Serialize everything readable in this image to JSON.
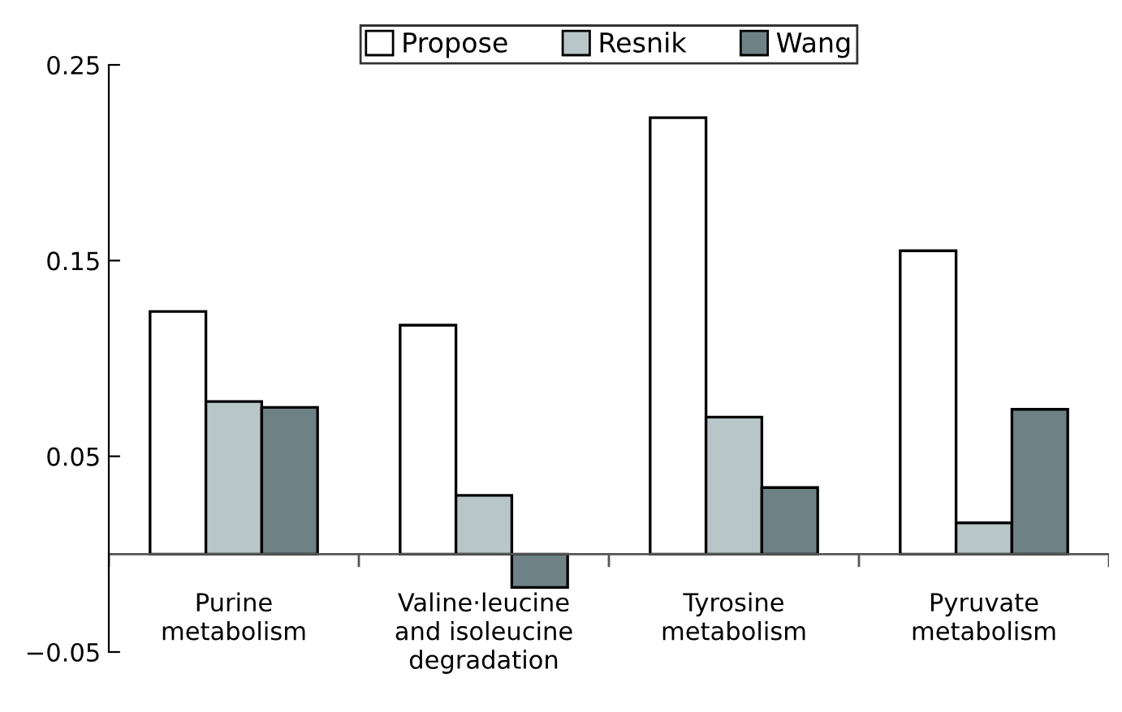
{
  "chart_data": {
    "type": "bar",
    "categories": [
      "Purine\nmetabolism",
      "Valine·leucine\nand isoleucine\ndegradation",
      "Tyrosine\nmetabolism",
      "Pyruvate\nmetabolism"
    ],
    "series": [
      {
        "name": "Propose",
        "color": "#ffffff",
        "values": [
          0.124,
          0.117,
          0.223,
          0.155
        ]
      },
      {
        "name": "Resnik",
        "color": "#b8c6c8",
        "values": [
          0.078,
          0.03,
          0.07,
          0.016
        ]
      },
      {
        "name": "Wang",
        "color": "#6e8286",
        "values": [
          0.075,
          -0.017,
          0.034,
          0.074
        ]
      }
    ],
    "ylim": [
      -0.05,
      0.25
    ],
    "yticks": [
      0.25,
      0.15,
      0.05,
      {
        "value": -0.05,
        "label": "−0.05"
      }
    ],
    "grid": false,
    "legend": "top"
  }
}
